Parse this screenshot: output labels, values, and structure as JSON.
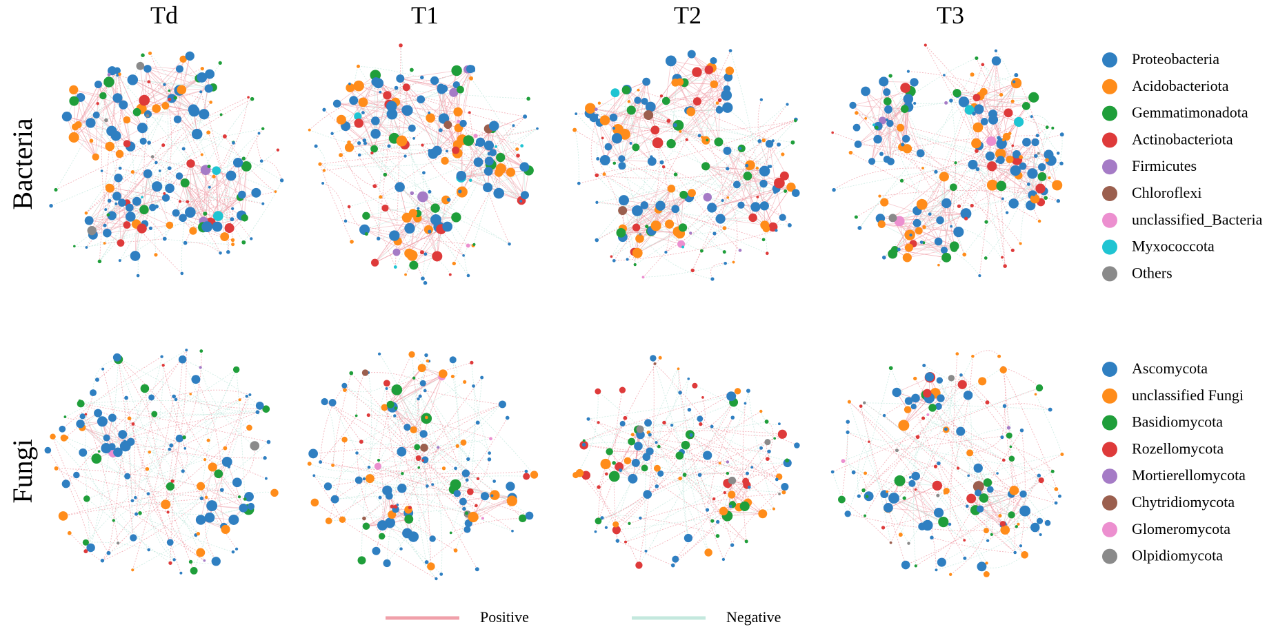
{
  "columns": [
    "Td",
    "T1",
    "T2",
    "T3"
  ],
  "rows": [
    "Bacteria",
    "Fungi"
  ],
  "legends": [
    {
      "items": [
        {
          "label": "Proteobacteria",
          "color": "#2f7fc1"
        },
        {
          "label": "Acidobacteriota",
          "color": "#ff8c1a"
        },
        {
          "label": "Gemmatimonadota",
          "color": "#1f9e3a"
        },
        {
          "label": "Actinobacteriota",
          "color": "#de3a3a"
        },
        {
          "label": "Firmicutes",
          "color": "#a57bc6"
        },
        {
          "label": "Chloroflexi",
          "color": "#9b5f4e"
        },
        {
          "label": "unclassified_Bacteria",
          "color": "#ec8fcf"
        },
        {
          "label": "Myxococcota",
          "color": "#1fc4d2"
        },
        {
          "label": "Others",
          "color": "#8a8a8a"
        }
      ]
    },
    {
      "items": [
        {
          "label": "Ascomycota",
          "color": "#2f7fc1"
        },
        {
          "label": "unclassified Fungi",
          "color": "#ff8c1a"
        },
        {
          "label": "Basidiomycota",
          "color": "#1f9e3a"
        },
        {
          "label": "Rozellomycota",
          "color": "#de3a3a"
        },
        {
          "label": "Mortierellomycota",
          "color": "#a57bc6"
        },
        {
          "label": "Chytridiomycota",
          "color": "#9b5f4e"
        },
        {
          "label": "Glomeromycota",
          "color": "#ec8fcf"
        },
        {
          "label": "Olpidiomycota",
          "color": "#8a8a8a"
        }
      ]
    }
  ],
  "edges": [
    {
      "label": "Positive",
      "color": "#f0a0aa"
    },
    {
      "label": "Negative",
      "color": "#c4e8de"
    }
  ]
}
